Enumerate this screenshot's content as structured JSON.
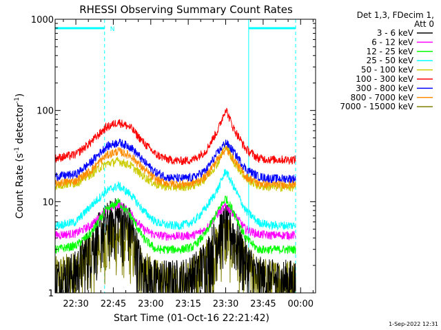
{
  "chart_data": {
    "type": "line",
    "title": "RHESSI Observing Summary Count Rates",
    "xlabel": "Start Time (01-Oct-16 22:21:42)",
    "ylabel_main": "Count Rate (s",
    "ylabel_sup1": "-1",
    "ylabel_mid": " detector",
    "ylabel_sup2": "-1",
    "ylabel_end": ")",
    "yscale": "log",
    "ylim": [
      1,
      1000
    ],
    "yticks": [
      {
        "value": 1,
        "label": "1"
      },
      {
        "value": 10,
        "label": "10"
      },
      {
        "value": 100,
        "label": "100"
      },
      {
        "value": 1000,
        "label": "1000"
      }
    ],
    "xlim_minutes": [
      1341.7,
      1446
    ],
    "xticks": [
      {
        "value": 1350,
        "label": "22:30"
      },
      {
        "value": 1365,
        "label": "22:45"
      },
      {
        "value": 1380,
        "label": "23:00"
      },
      {
        "value": 1395,
        "label": "23:15"
      },
      {
        "value": 1410,
        "label": "23:30"
      },
      {
        "value": 1425,
        "label": "23:45"
      },
      {
        "value": 1440,
        "label": "00:00"
      }
    ],
    "data_range_minutes": [
      1341.7,
      1438
    ],
    "night_intervals": [
      [
        1341.7,
        1361.5
      ],
      [
        1419.2,
        1438
      ]
    ],
    "saa_markers": [
      1361.5,
      1438
    ],
    "night_label": "N",
    "legend_header": [
      "Det 1,3, FDecim 1,",
      "Att 0"
    ],
    "series": [
      {
        "name": "3 - 6 keV",
        "color": "#000000",
        "noisy": true,
        "x": [
          1342,
          1350,
          1356,
          1362,
          1367,
          1372,
          1377,
          1382,
          1387,
          1392,
          1397,
          1402,
          1407,
          1410,
          1413,
          1418,
          1423,
          1428,
          1433,
          1438
        ],
        "y": [
          1.2,
          1.5,
          3,
          5,
          6,
          4.5,
          1.4,
          1.2,
          1.2,
          1.2,
          1.4,
          2,
          4,
          5,
          4,
          2,
          1.3,
          1.2,
          1.2,
          1.2
        ]
      },
      {
        "name": "6 - 12 keV",
        "color": "#ff00ff",
        "x": [
          1342,
          1350,
          1356,
          1362,
          1367,
          1372,
          1377,
          1382,
          1387,
          1392,
          1397,
          1402,
          1407,
          1410,
          1413,
          1418,
          1423,
          1428,
          1433,
          1438
        ],
        "y": [
          4.3,
          4.5,
          5.5,
          8,
          9.5,
          7.5,
          5,
          4.3,
          4.2,
          4.2,
          4.3,
          5,
          7.5,
          9,
          7.5,
          5,
          4.4,
          4.3,
          4.3,
          4.3
        ]
      },
      {
        "name": "12 - 25 keV",
        "color": "#00ff00",
        "x": [
          1342,
          1350,
          1356,
          1362,
          1367,
          1372,
          1377,
          1382,
          1387,
          1392,
          1397,
          1402,
          1407,
          1410,
          1413,
          1418,
          1423,
          1428,
          1433,
          1438
        ],
        "y": [
          3,
          3.3,
          4.5,
          8,
          10,
          7,
          4,
          3,
          3,
          3,
          3.2,
          4.5,
          8,
          11,
          8,
          4,
          3,
          3,
          3,
          3
        ]
      },
      {
        "name": "25 - 50 keV",
        "color": "#00ffff",
        "x": [
          1342,
          1350,
          1356,
          1362,
          1367,
          1372,
          1377,
          1382,
          1387,
          1392,
          1397,
          1402,
          1407,
          1410,
          1413,
          1418,
          1423,
          1428,
          1433,
          1438
        ],
        "y": [
          5.5,
          6,
          9,
          13,
          15,
          12,
          8,
          6,
          5.5,
          5.5,
          6,
          8.5,
          14,
          22,
          15,
          8,
          6,
          5.5,
          5.5,
          5.5
        ]
      },
      {
        "name": "50 - 100 keV",
        "color": "#cccc00",
        "x": [
          1342,
          1350,
          1356,
          1362,
          1367,
          1372,
          1377,
          1382,
          1387,
          1392,
          1397,
          1402,
          1407,
          1410,
          1413,
          1418,
          1423,
          1428,
          1433,
          1438
        ],
        "y": [
          15,
          16,
          20,
          26,
          28,
          25,
          19,
          15.5,
          14.5,
          14.5,
          15,
          18,
          27,
          42,
          28,
          18,
          15,
          14.5,
          14.5,
          14.5
        ]
      },
      {
        "name": "100 - 300 keV",
        "color": "#ff0000",
        "x": [
          1342,
          1350,
          1356,
          1362,
          1367,
          1372,
          1377,
          1382,
          1387,
          1392,
          1397,
          1402,
          1407,
          1410,
          1413,
          1418,
          1423,
          1428,
          1433,
          1438
        ],
        "y": [
          30,
          33,
          45,
          65,
          75,
          65,
          45,
          33,
          29,
          28,
          29,
          36,
          62,
          105,
          65,
          38,
          30,
          29,
          29,
          29
        ]
      },
      {
        "name": "300 - 800 keV",
        "color": "#0000ff",
        "x": [
          1342,
          1350,
          1356,
          1362,
          1367,
          1372,
          1377,
          1382,
          1387,
          1392,
          1397,
          1402,
          1407,
          1410,
          1413,
          1418,
          1423,
          1428,
          1433,
          1438
        ],
        "y": [
          19,
          20,
          27,
          40,
          45,
          40,
          28,
          21,
          18.5,
          18,
          18.5,
          22,
          35,
          45,
          36,
          23,
          19,
          18,
          18,
          18
        ]
      },
      {
        "name": "800 - 7000 keV",
        "color": "#ff8c00",
        "x": [
          1342,
          1350,
          1356,
          1362,
          1367,
          1372,
          1377,
          1382,
          1387,
          1392,
          1397,
          1402,
          1407,
          1410,
          1413,
          1418,
          1423,
          1428,
          1433,
          1438
        ],
        "y": [
          16,
          17,
          22,
          32,
          36,
          32,
          23,
          17.5,
          16,
          15.5,
          16,
          19,
          30,
          38,
          30,
          19,
          16,
          15.5,
          15.5,
          15.5
        ]
      },
      {
        "name": "7000 - 15000 keV",
        "color": "#808000",
        "noisy": true,
        "x": [
          1342,
          1350,
          1356,
          1362,
          1367,
          1372,
          1377,
          1382,
          1387,
          1392,
          1397,
          1402,
          1407,
          1410,
          1413,
          1418,
          1423,
          1428,
          1433,
          1438
        ],
        "y": [
          1.3,
          1.5,
          2.5,
          3.5,
          4,
          3.2,
          1.5,
          1.2,
          1.1,
          1.1,
          1.3,
          2,
          3,
          4,
          3,
          1.8,
          1.3,
          1.2,
          1.2,
          1.2
        ]
      }
    ]
  },
  "timestamp": "1-Sep-2022 12:31"
}
